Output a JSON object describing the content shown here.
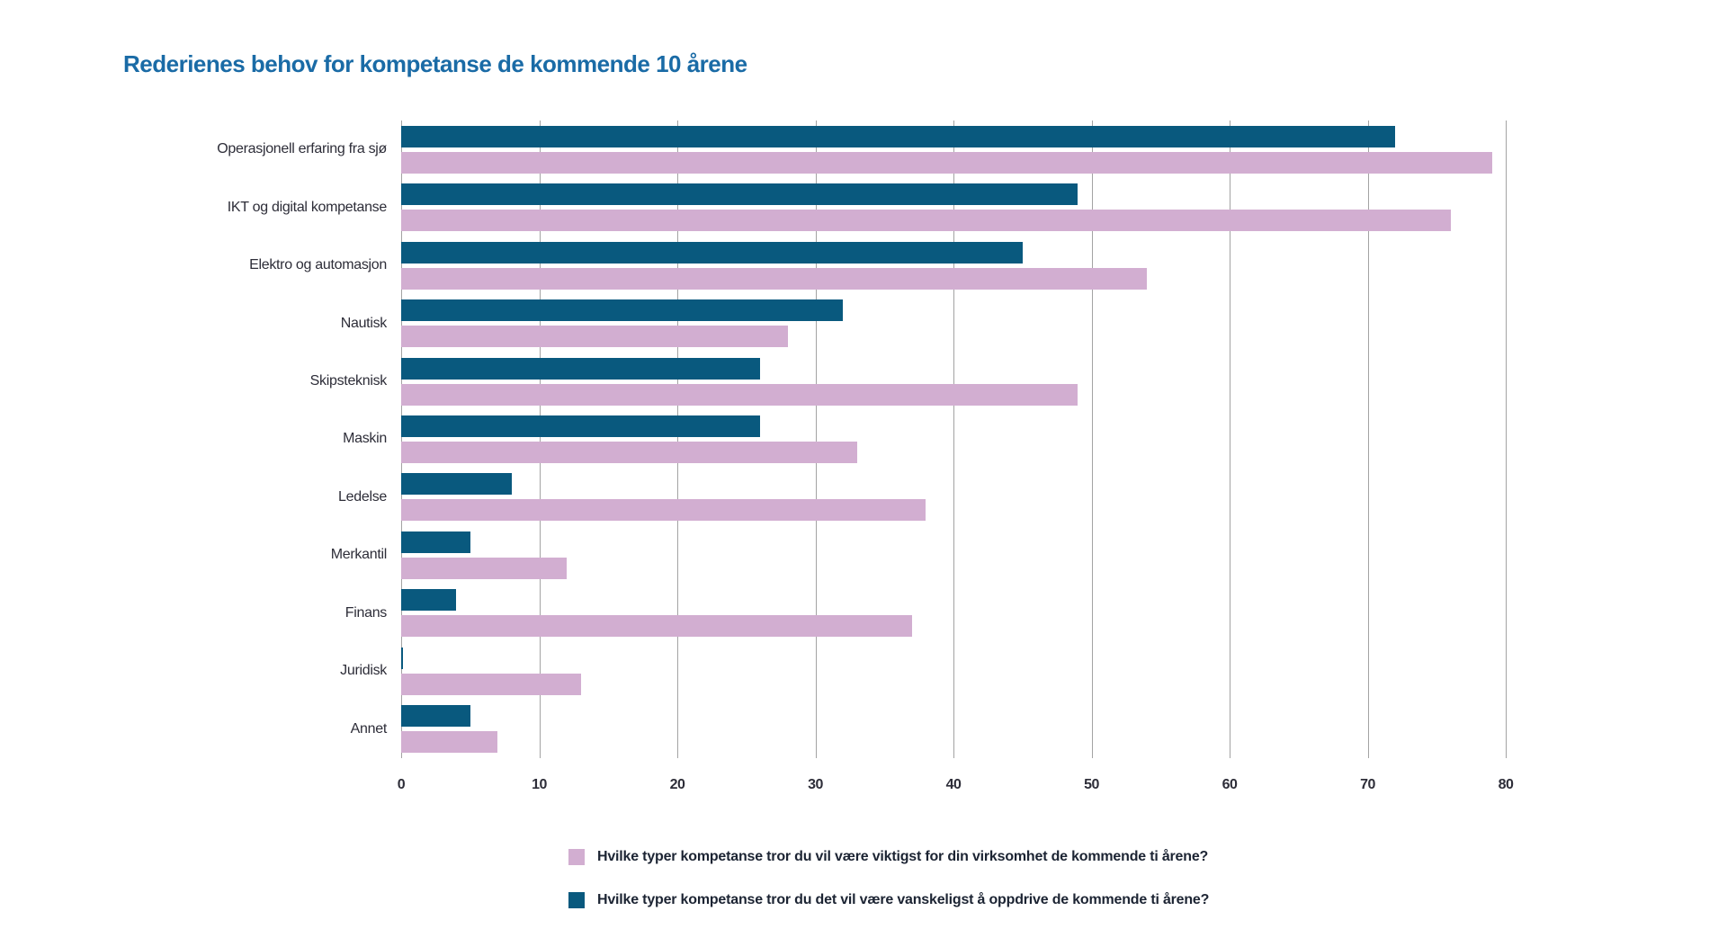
{
  "title": {
    "text": "Rederienes behov for kompetanse de kommende 10 årene",
    "color": "#1a6ba6"
  },
  "chart_data": {
    "type": "bar",
    "orientation": "horizontal",
    "title": "Rederienes behov for kompetanse de kommende 10 årene",
    "categories": [
      "Operasjonell erfaring fra sjø",
      "IKT og digital kompetanse",
      "Elektro og automasjon",
      "Nautisk",
      "Skipsteknisk",
      "Maskin",
      "Ledelse",
      "Merkantil",
      "Finans",
      "Juridisk",
      "Annet"
    ],
    "series": [
      {
        "key": "viktigst",
        "name": "Hvilke typer kompetanse tror du vil være viktigst for din virksomhet de kommende ti årene?",
        "color": "#d2aed1",
        "values": [
          79,
          76,
          54,
          28,
          49,
          33,
          38,
          12,
          37,
          13,
          7
        ]
      },
      {
        "key": "vanskeligst",
        "name": "Hvilke typer kompetanse tror du det vil være vanskeligst å oppdrive de kommende ti årene?",
        "color": "#09597e",
        "values": [
          72,
          49,
          45,
          32,
          26,
          26,
          8,
          5,
          4,
          0,
          5
        ]
      }
    ],
    "xlabel": "",
    "ylabel": "",
    "xlim": [
      0,
      80
    ],
    "xticks": [
      0,
      10,
      20,
      30,
      40,
      50,
      60,
      70,
      80
    ],
    "grid": "vertical",
    "gridline_color": "#a3a3a3",
    "legend_position": "bottom",
    "bar_draw_order_top_to_bottom": [
      1,
      0
    ]
  }
}
